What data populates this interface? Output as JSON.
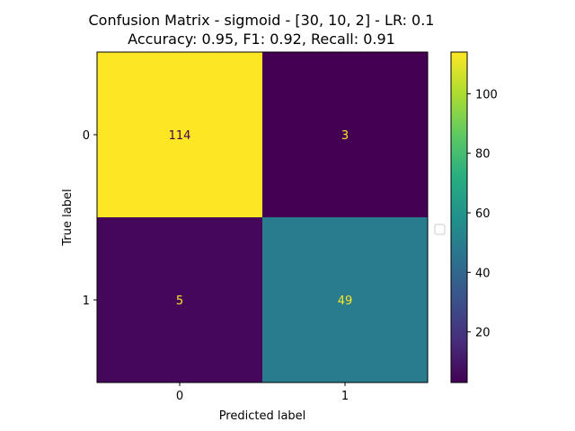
{
  "chart_data": {
    "type": "heatmap",
    "title_line1": "Confusion Matrix - sigmoid - [30, 10, 2] - LR: 0.1",
    "title_line2": "Accuracy: 0.95, F1: 0.92, Recall: 0.91",
    "xlabel": "Predicted label",
    "ylabel": "True label",
    "x_categories": [
      "0",
      "1"
    ],
    "y_categories": [
      "0",
      "1"
    ],
    "matrix": [
      [
        114,
        3
      ],
      [
        5,
        49
      ]
    ],
    "colormap": "viridis",
    "colorbar": {
      "min": 3,
      "max": 114,
      "ticks": [
        20,
        40,
        60,
        80,
        100
      ],
      "tick_labels": [
        "20",
        "40",
        "60",
        "80",
        "100"
      ]
    },
    "legend": {
      "placement": "right of plot, empty",
      "entries": []
    },
    "text_colors": {
      "dark_cell": "#fde725",
      "light_cell": "#440154"
    }
  }
}
